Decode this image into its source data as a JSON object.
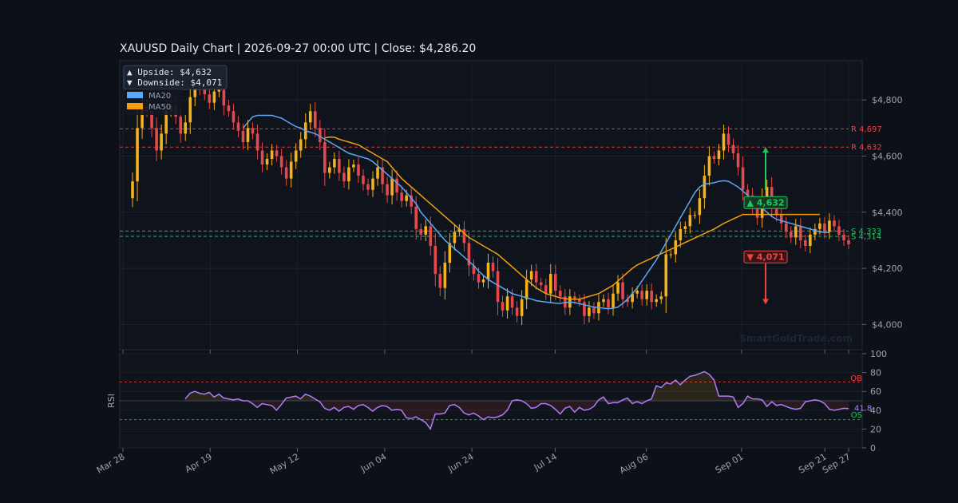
{
  "chart_data": {
    "type": "candlestick",
    "title": "XAUUSD  Daily Chart  |  2026-09-27 00:00 UTC  |  Close: $4,286.20",
    "watermark": "SmartGoldTrade.com",
    "colors": {
      "up": "#f5b21a",
      "down": "#e5484d",
      "ma20": "#5aa9f8",
      "ma50": "#f59e0b",
      "rsi": "#b07cf5",
      "support": "#22c55e",
      "resistance": "#ef4444"
    },
    "x_ticks": [
      "Mar 28",
      "Apr 19",
      "May 12",
      "Jun 04",
      "Jun 24",
      "Jul 14",
      "Aug 06",
      "Sep 01",
      "Sep 21",
      "Sep 27"
    ],
    "y_ticks": [
      "$4,000",
      "$4,200",
      "$4,400",
      "$4,600",
      "$4,800"
    ],
    "ylim": [
      3910,
      4940
    ],
    "legend": {
      "upside_label": "▲ Upside:   $4,632",
      "downside_label": "▼ Downside: $4,071",
      "ma20_label": "MA20",
      "ma50_label": "MA50"
    },
    "levels": [
      {
        "kind": "resistance",
        "value": 4697,
        "label": "R 4,697"
      },
      {
        "kind": "resistance",
        "value": 4632,
        "label": "R 4,632"
      },
      {
        "kind": "support",
        "value": 4333,
        "label": "S 4,333"
      },
      {
        "kind": "support",
        "value": 4314,
        "label": "S 4,314"
      }
    ],
    "targets": {
      "upside_label": "▲ 4,632",
      "upside_value": 4632,
      "downside_label": "▼ 4,071",
      "downside_value": 4071,
      "from_value": 4450
    },
    "closes": [
      4450,
      4510,
      4700,
      4780,
      4760,
      4700,
      4620,
      4680,
      4760,
      4780,
      4740,
      4680,
      4720,
      4810,
      4870,
      4840,
      4820,
      4790,
      4830,
      4850,
      4780,
      4760,
      4720,
      4690,
      4650,
      4700,
      4680,
      4620,
      4570,
      4590,
      4620,
      4600,
      4560,
      4520,
      4580,
      4620,
      4660,
      4720,
      4760,
      4700,
      4650,
      4540,
      4560,
      4590,
      4540,
      4510,
      4560,
      4570,
      4530,
      4500,
      4480,
      4520,
      4560,
      4500,
      4460,
      4520,
      4470,
      4440,
      4460,
      4420,
      4340,
      4320,
      4350,
      4280,
      4180,
      4130,
      4220,
      4290,
      4330,
      4340,
      4290,
      4210,
      4180,
      4150,
      4160,
      4220,
      4190,
      4080,
      4050,
      4100,
      4060,
      4030,
      4090,
      4160,
      4190,
      4150,
      4140,
      4110,
      4180,
      4120,
      4100,
      4060,
      4100,
      4090,
      4080,
      4030,
      4060,
      4040,
      4080,
      4090,
      4060,
      4110,
      4150,
      4090,
      4080,
      4110,
      4120,
      4090,
      4120,
      4080,
      4090,
      4100,
      4250,
      4250,
      4300,
      4340,
      4350,
      4390,
      4390,
      4450,
      4530,
      4600,
      4590,
      4620,
      4680,
      4640,
      4610,
      4560,
      4480,
      4460,
      4420,
      4380,
      4450,
      4490,
      4420,
      4390,
      4360,
      4330,
      4310,
      4350,
      4300,
      4280,
      4320,
      4340,
      4360,
      4330,
      4370,
      4350,
      4320,
      4300,
      4286
    ],
    "ma20": [
      null,
      null,
      null,
      null,
      null,
      null,
      null,
      null,
      null,
      null,
      null,
      null,
      null,
      null,
      null,
      null,
      null,
      null,
      null,
      null,
      null,
      null,
      null,
      null,
      4700,
      4720,
      4740,
      4745,
      4745,
      4745,
      4745,
      4740,
      4735,
      4725,
      4715,
      4705,
      4700,
      4690,
      4685,
      4680,
      4670,
      4660,
      4650,
      4640,
      4630,
      4620,
      4610,
      4605,
      4600,
      4595,
      4590,
      4580,
      4565,
      4550,
      4535,
      4520,
      4505,
      4490,
      4470,
      4450,
      4430,
      4400,
      4380,
      4360,
      4340,
      4320,
      4300,
      4285,
      4270,
      4255,
      4240,
      4225,
      4210,
      4190,
      4175,
      4160,
      4150,
      4140,
      4130,
      4120,
      4110,
      4105,
      4100,
      4095,
      4090,
      4085,
      4082,
      4080,
      4078,
      4076,
      4075,
      4078,
      4080,
      4078,
      4074,
      4070,
      4066,
      4062,
      4060,
      4058,
      4056,
      4058,
      4062,
      4075,
      4090,
      4110,
      4130,
      4155,
      4180,
      4205,
      4230,
      4260,
      4290,
      4320,
      4350,
      4380,
      4410,
      4440,
      4470,
      4490,
      4500,
      4502,
      4505,
      4510,
      4512,
      4510,
      4500,
      4490,
      4475,
      4460,
      4445,
      4430,
      4415,
      4400,
      4385,
      4375,
      4370,
      4365,
      4360,
      4355,
      4350,
      4345,
      4340,
      4335,
      4330,
      4328,
      4327
    ],
    "ma50": [
      null,
      null,
      null,
      null,
      null,
      null,
      null,
      null,
      null,
      null,
      null,
      null,
      null,
      null,
      null,
      null,
      null,
      null,
      null,
      null,
      null,
      null,
      null,
      null,
      null,
      null,
      null,
      null,
      null,
      null,
      null,
      null,
      null,
      null,
      null,
      null,
      null,
      null,
      null,
      null,
      null,
      4665,
      4668,
      4667,
      4660,
      4655,
      4650,
      4645,
      4640,
      4630,
      4620,
      4610,
      4600,
      4590,
      4580,
      4560,
      4540,
      4520,
      4505,
      4490,
      4475,
      4460,
      4445,
      4430,
      4415,
      4400,
      4385,
      4370,
      4355,
      4340,
      4325,
      4310,
      4300,
      4290,
      4280,
      4270,
      4260,
      4250,
      4235,
      4220,
      4205,
      4190,
      4175,
      4160,
      4145,
      4130,
      4120,
      4110,
      4105,
      4100,
      4095,
      4092,
      4090,
      4090,
      4090,
      4095,
      4100,
      4105,
      4110,
      4120,
      4130,
      4140,
      4155,
      4170,
      4185,
      4200,
      4212,
      4220,
      4228,
      4236,
      4245,
      4252,
      4260,
      4268,
      4276,
      4284,
      4292,
      4300,
      4308,
      4316,
      4324,
      4332,
      4340,
      4350,
      4360,
      4368,
      4376,
      4384,
      4392,
      4392,
      4392,
      4392,
      4392,
      4392,
      4392,
      4392,
      4392,
      4392,
      4392,
      4392,
      4392,
      4392,
      4392,
      4392,
      4392
    ],
    "rsi": {
      "label": "RSI",
      "ylim": [
        0,
        100
      ],
      "y_ticks": [
        "0",
        "20",
        "40",
        "60",
        "80",
        "100"
      ],
      "ob": 70,
      "os": 30,
      "mid": 50,
      "ob_label": "OB",
      "os_label": "OS",
      "last_label": "41.8",
      "values": [
        52,
        58,
        60,
        58,
        57,
        59,
        54,
        57,
        53,
        52,
        51,
        52,
        50,
        50,
        47,
        43,
        47,
        46,
        45,
        40,
        46,
        53,
        54,
        55,
        52,
        57,
        55,
        52,
        49,
        42,
        40,
        43,
        39,
        43,
        44,
        41,
        45,
        46,
        43,
        39,
        43,
        45,
        44,
        40,
        41,
        40,
        32,
        31,
        33,
        30,
        27,
        20,
        36,
        36,
        37,
        45,
        46,
        43,
        37,
        35,
        37,
        34,
        30,
        33,
        32,
        33,
        35,
        40,
        50,
        51,
        50,
        47,
        42,
        43,
        47,
        47,
        45,
        41,
        36,
        42,
        44,
        38,
        43,
        40,
        41,
        44,
        51,
        54,
        47,
        48,
        48,
        51,
        53,
        47,
        49,
        47,
        50,
        52,
        66,
        64,
        69,
        68,
        72,
        67,
        72,
        76,
        77,
        79,
        81,
        78,
        72,
        55,
        55,
        55,
        54,
        43,
        47,
        55,
        52,
        52,
        51,
        44,
        49,
        45,
        46,
        44,
        42,
        41,
        42,
        49,
        50,
        51,
        50,
        47,
        41,
        40,
        41,
        42,
        41.8
      ]
    }
  }
}
